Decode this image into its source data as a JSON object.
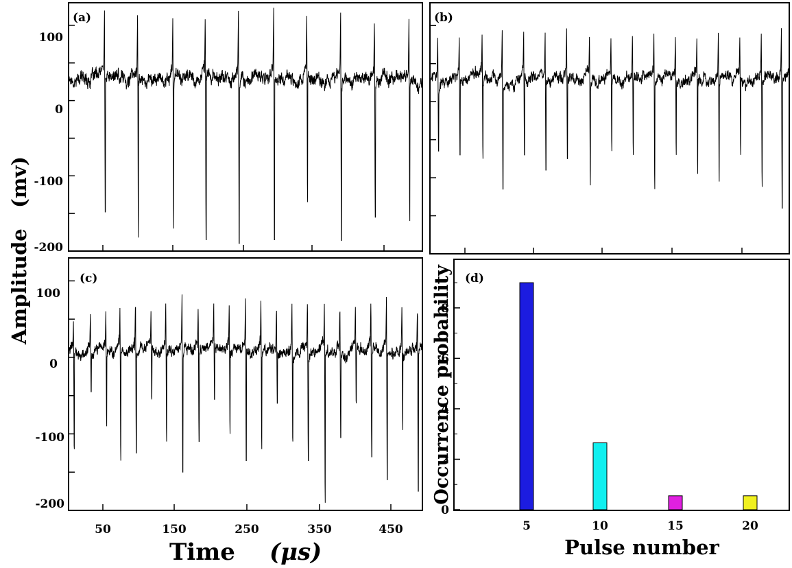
{
  "figure": {
    "y_title_left": "Amplitude   (mv)",
    "x_title_time": "Time",
    "x_title_unit": "(μs)"
  },
  "chart_data": [
    {
      "type": "line",
      "panel": "(a)",
      "y_ticks": [
        "100",
        "0",
        "-100",
        "-200"
      ],
      "ylim": [
        -200,
        130
      ],
      "xlim": [
        0,
        500
      ],
      "baseline": 30,
      "noise": 12,
      "pulses": [
        {
          "t": 50,
          "peak": 118,
          "trough": -148
        },
        {
          "t": 97,
          "peak": 122,
          "trough": -182
        },
        {
          "t": 147,
          "peak": 120,
          "trough": -170
        },
        {
          "t": 193,
          "peak": 122,
          "trough": -185
        },
        {
          "t": 240,
          "peak": 120,
          "trough": -190
        },
        {
          "t": 290,
          "peak": 122,
          "trough": -185
        },
        {
          "t": 337,
          "peak": 120,
          "trough": -135
        },
        {
          "t": 385,
          "peak": 118,
          "trough": -186
        },
        {
          "t": 433,
          "peak": 116,
          "trough": -155
        },
        {
          "t": 482,
          "peak": 118,
          "trough": -160
        }
      ]
    },
    {
      "type": "line",
      "panel": "(b)",
      "ylim": [
        -200,
        130
      ],
      "xlim": [
        0,
        500
      ],
      "baseline": 30,
      "noise": 10,
      "pulses": [
        {
          "t": 10,
          "peak": 85,
          "trough": -65
        },
        {
          "t": 40,
          "peak": 85,
          "trough": -70
        },
        {
          "t": 72,
          "peak": 95,
          "trough": -75
        },
        {
          "t": 100,
          "peak": 95,
          "trough": -115
        },
        {
          "t": 130,
          "peak": 90,
          "trough": -70
        },
        {
          "t": 160,
          "peak": 92,
          "trough": -90
        },
        {
          "t": 190,
          "peak": 95,
          "trough": -75
        },
        {
          "t": 222,
          "peak": 92,
          "trough": -110
        },
        {
          "t": 252,
          "peak": 90,
          "trough": -65
        },
        {
          "t": 282,
          "peak": 94,
          "trough": -70
        },
        {
          "t": 312,
          "peak": 96,
          "trough": -115
        },
        {
          "t": 342,
          "peak": 92,
          "trough": -70
        },
        {
          "t": 372,
          "peak": 88,
          "trough": -95
        },
        {
          "t": 402,
          "peak": 98,
          "trough": -105
        },
        {
          "t": 432,
          "peak": 90,
          "trough": -70
        },
        {
          "t": 462,
          "peak": 96,
          "trough": -112
        },
        {
          "t": 490,
          "peak": 98,
          "trough": -140
        }
      ]
    },
    {
      "type": "line",
      "panel": "(c)",
      "y_ticks": [
        "100",
        "0",
        "-100",
        "-200"
      ],
      "x_ticks": [
        "50",
        "150",
        "250",
        "350",
        "450"
      ],
      "ylim": [
        -200,
        130
      ],
      "xlim": [
        0,
        500
      ],
      "baseline": 8,
      "noise": 10,
      "pulses": [
        {
          "t": 6,
          "peak": 50,
          "trough": -120
        },
        {
          "t": 30,
          "peak": 58,
          "trough": -45
        },
        {
          "t": 52,
          "peak": 65,
          "trough": -90
        },
        {
          "t": 72,
          "peak": 70,
          "trough": -135
        },
        {
          "t": 94,
          "peak": 80,
          "trough": -125
        },
        {
          "t": 116,
          "peak": 62,
          "trough": -55
        },
        {
          "t": 137,
          "peak": 78,
          "trough": -110
        },
        {
          "t": 160,
          "peak": 82,
          "trough": -150
        },
        {
          "t": 183,
          "peak": 70,
          "trough": -110
        },
        {
          "t": 205,
          "peak": 70,
          "trough": -55
        },
        {
          "t": 227,
          "peak": 75,
          "trough": -100
        },
        {
          "t": 250,
          "peak": 78,
          "trough": -135
        },
        {
          "t": 272,
          "peak": 80,
          "trough": -120
        },
        {
          "t": 294,
          "peak": 70,
          "trough": -60
        },
        {
          "t": 316,
          "peak": 75,
          "trough": -110
        },
        {
          "t": 338,
          "peak": 82,
          "trough": -135
        },
        {
          "t": 362,
          "peak": 78,
          "trough": -190
        },
        {
          "t": 384,
          "peak": 72,
          "trough": -105
        },
        {
          "t": 406,
          "peak": 70,
          "trough": -60
        },
        {
          "t": 428,
          "peak": 80,
          "trough": -130
        },
        {
          "t": 450,
          "peak": 78,
          "trough": -160
        },
        {
          "t": 472,
          "peak": 75,
          "trough": -95
        },
        {
          "t": 494,
          "peak": 70,
          "trough": -175
        }
      ]
    },
    {
      "type": "bar",
      "panel": "(d)",
      "categories": [
        "5",
        "10",
        "15",
        "20"
      ],
      "values": [
        9.0,
        2.65,
        0.55,
        0.55
      ],
      "colors": [
        "#1c1ce0",
        "#10f0f0",
        "#e020e0",
        "#f0f020"
      ],
      "ylim": [
        0,
        9.6
      ],
      "y_ticks": [
        0,
        2,
        4,
        6,
        8
      ],
      "xlabel": "Pulse number",
      "ylabel": "Occurrence probability"
    }
  ]
}
